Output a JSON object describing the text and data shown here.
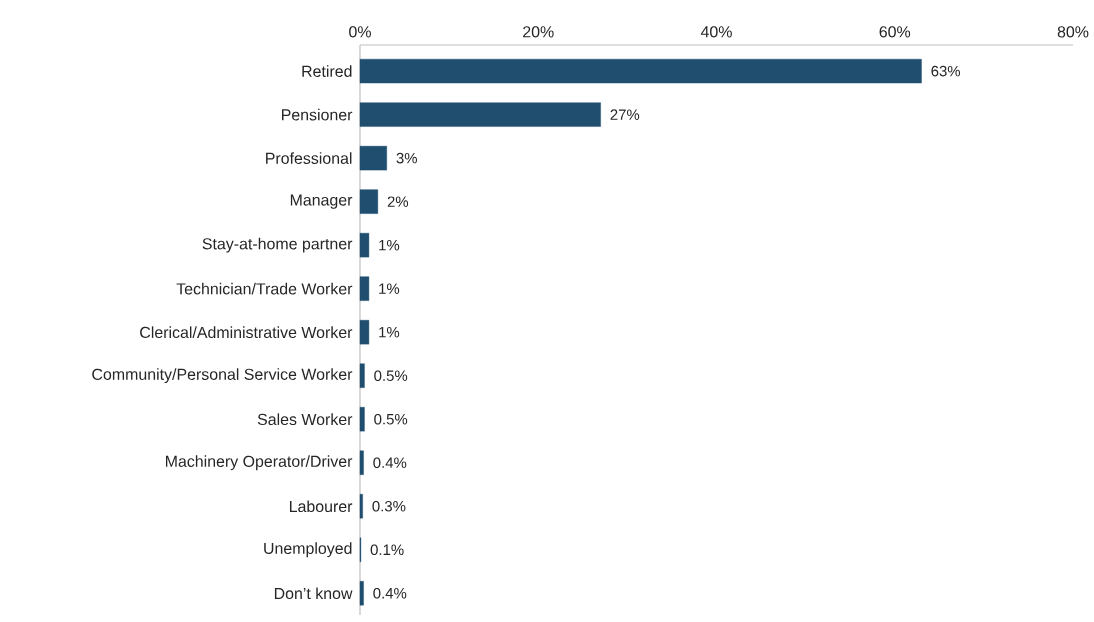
{
  "chart_data": {
    "type": "bar",
    "orientation": "horizontal",
    "color": "#1f4e6e",
    "categories": [
      "Retired",
      "Pensioner",
      "Professional",
      "Manager",
      "Stay-at-home partner",
      "Technician/Trade Worker",
      "Clerical/Administrative Worker",
      "Community/Personal Service Worker",
      "Sales Worker",
      "Machinery Operator/Driver",
      "Labourer",
      "Unemployed",
      "Don’t know"
    ],
    "values": [
      63,
      27,
      3,
      2,
      1,
      1,
      1,
      0.5,
      0.5,
      0.4,
      0.3,
      0.1,
      0.4
    ],
    "value_labels": [
      "63%",
      "27%",
      "3%",
      "2%",
      "1%",
      "1%",
      "1%",
      "0.5%",
      "0.5%",
      "0.4%",
      "0.3%",
      "0.1%",
      "0.4%"
    ],
    "xlim": [
      0,
      80
    ],
    "xticks": [
      {
        "value": 0,
        "label": "0%"
      },
      {
        "value": 20,
        "label": "20%"
      },
      {
        "value": 40,
        "label": "40%"
      },
      {
        "value": 60,
        "label": "60%"
      },
      {
        "value": 80,
        "label": "80%"
      }
    ]
  }
}
